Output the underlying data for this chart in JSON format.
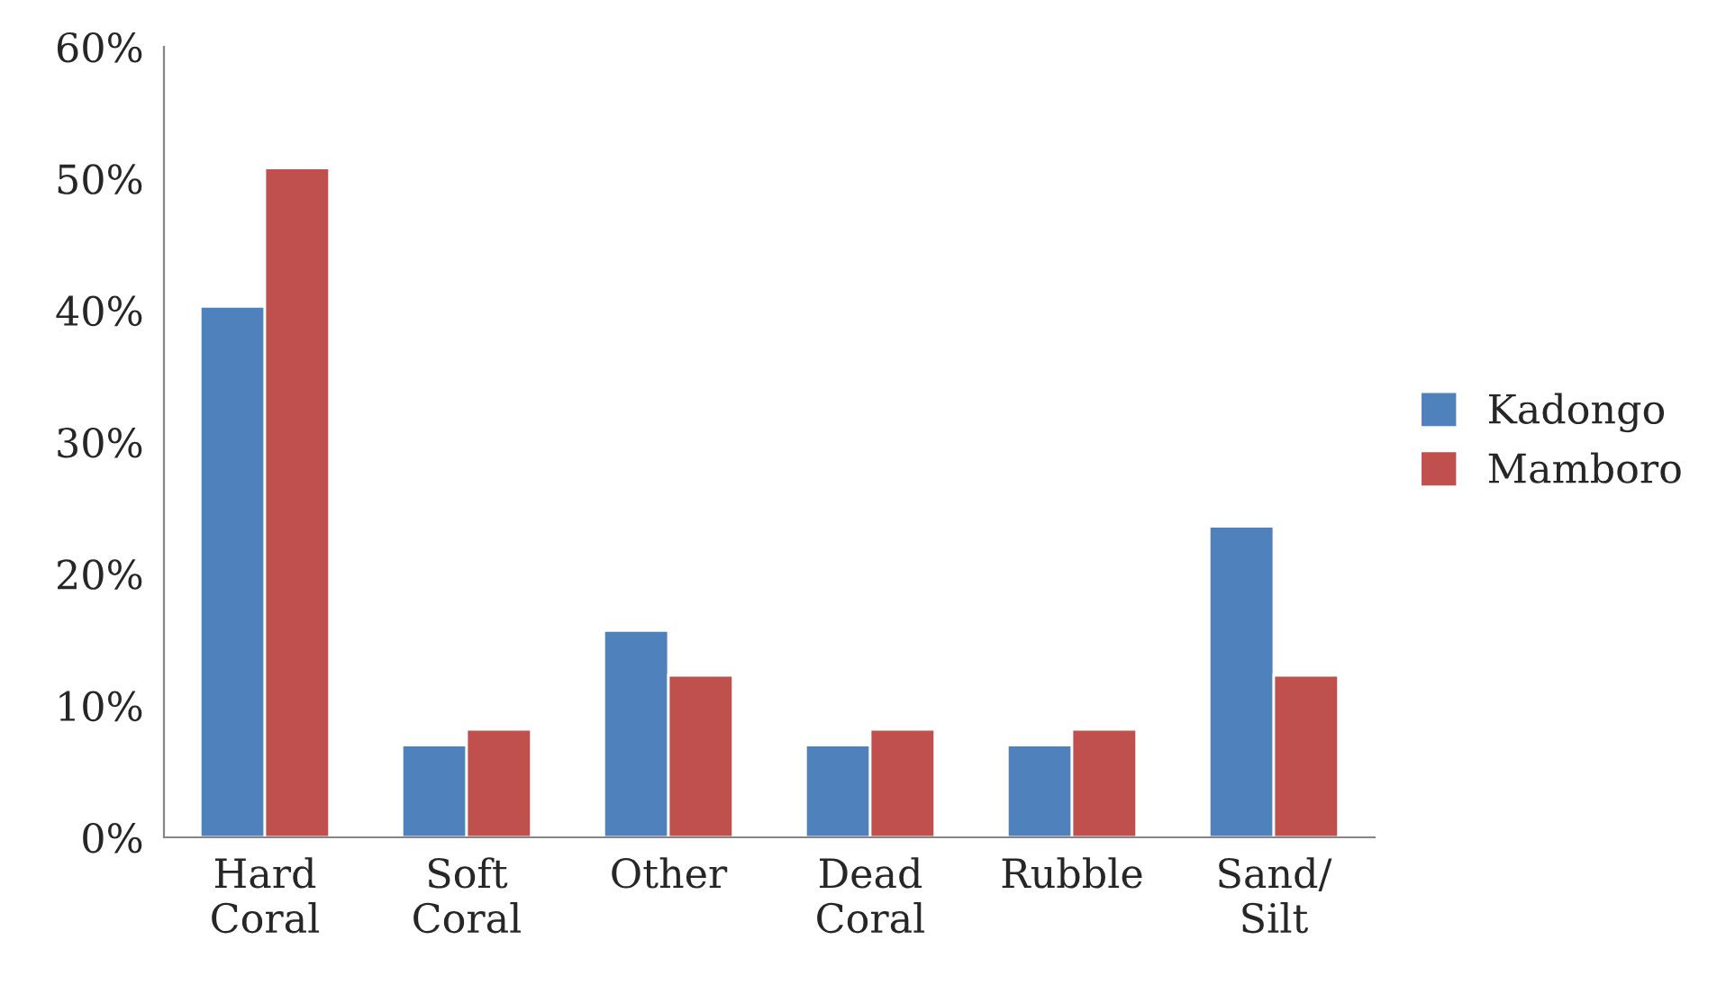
{
  "chart_data": {
    "type": "bar",
    "categories": [
      "Hard\nCoral",
      "Soft\nCoral",
      "Other",
      "Dead\nCoral",
      "Rubble",
      "Sand/\nSilt"
    ],
    "series": [
      {
        "name": "Kadongo",
        "color": "#4f81bd",
        "values": [
          40.3,
          7.0,
          15.7,
          7.0,
          7.0,
          23.6
        ]
      },
      {
        "name": "Mamboro",
        "color": "#c0504d",
        "values": [
          50.8,
          8.2,
          12.3,
          8.2,
          8.2,
          12.3
        ]
      }
    ],
    "ylim": [
      0,
      60
    ],
    "yticks": [
      {
        "value": 0,
        "label": "0%"
      },
      {
        "value": 10,
        "label": "10%"
      },
      {
        "value": 20,
        "label": "20%"
      },
      {
        "value": 30,
        "label": "30%"
      },
      {
        "value": 40,
        "label": "40%"
      },
      {
        "value": 50,
        "label": "50%"
      },
      {
        "value": 60,
        "label": "60%"
      }
    ],
    "grid": false,
    "legend": "right"
  }
}
